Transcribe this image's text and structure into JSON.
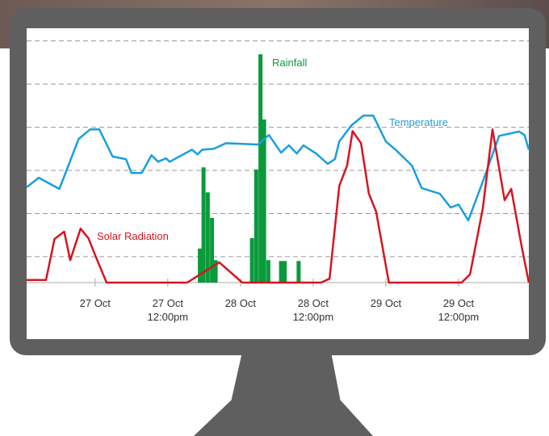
{
  "chart_data": {
    "type": "line",
    "xlim": [
      -11.3,
      71.6
    ],
    "xticks": [
      {
        "value": 0,
        "label": [
          "27 Oct"
        ]
      },
      {
        "value": 12,
        "label": [
          "27 Oct",
          "12:00pm"
        ]
      },
      {
        "value": 24,
        "label": [
          "28 Oct"
        ]
      },
      {
        "value": 36,
        "label": [
          "28 Oct",
          "12:00pm"
        ]
      },
      {
        "value": 48,
        "label": [
          "29 Oct"
        ]
      },
      {
        "value": 60,
        "label": [
          "29 Oct",
          "12:00pm"
        ]
      }
    ],
    "ylim": [
      0,
      5.65
    ],
    "yticks": [
      0.6,
      1.6,
      2.6,
      3.6,
      4.6,
      5.6
    ],
    "grid": true,
    "series": [
      {
        "name": "Rainfall",
        "type": "bar",
        "color": "#0a9a3c",
        "x": [
          17.3,
          17.9,
          18.6,
          19.3,
          19.9,
          25.9,
          26.6,
          27.3,
          27.9,
          28.6,
          30.7,
          31.3,
          33.6
        ],
        "values": [
          0.79,
          2.67,
          2.09,
          1.5,
          0.52,
          1.03,
          2.62,
          5.29,
          3.78,
          0.52,
          0.5,
          0.5,
          0.5
        ]
      },
      {
        "name": "Temperature",
        "type": "line",
        "color": "#1a9ee0",
        "x": [
          -11.3,
          -9.3,
          -5.9,
          -2.7,
          -0.8,
          0.7,
          2.9,
          5.1,
          6.0,
          7.7,
          9.3,
          10.4,
          11.7,
          12.3,
          16.0,
          16.9,
          17.7,
          19.6,
          21.6,
          26.9,
          28.7,
          30.7,
          32.0,
          33.3,
          34.4,
          36.5,
          38.4,
          39.6,
          40.3,
          42.3,
          44.3,
          45.9,
          48.0,
          49.6,
          52.3,
          53.9,
          56.9,
          58.7,
          60.0,
          61.6,
          64.0,
          66.7,
          70.0,
          70.9,
          71.6
        ],
        "values": [
          2.21,
          2.43,
          2.17,
          3.33,
          3.55,
          3.55,
          2.92,
          2.86,
          2.54,
          2.54,
          2.95,
          2.8,
          2.88,
          2.8,
          3.08,
          2.97,
          3.08,
          3.1,
          3.23,
          3.2,
          3.42,
          3.01,
          3.18,
          2.99,
          3.18,
          2.99,
          2.75,
          2.86,
          3.27,
          3.64,
          3.87,
          3.87,
          3.27,
          3.08,
          2.71,
          2.19,
          2.06,
          1.74,
          1.81,
          1.44,
          2.34,
          3.4,
          3.5,
          3.42,
          3.08
        ]
      },
      {
        "name": "Solar Radiation",
        "type": "line",
        "color": "#d7141e",
        "x": [
          -11.3,
          -8.1,
          -6.7,
          -5.1,
          -4.1,
          -2.4,
          -1.1,
          0,
          1.9,
          15.2,
          20.5,
          24.3,
          37.3,
          38.7,
          40.3,
          41.6,
          42.5,
          43.9,
          45.2,
          46.4,
          48.5,
          60.5,
          61.9,
          64.0,
          65.6,
          67.6,
          68.7,
          70.3,
          71.6
        ],
        "values": [
          0.06,
          0.06,
          1.01,
          1.18,
          0.52,
          1.25,
          1.03,
          0.64,
          0,
          0,
          0.47,
          0,
          0,
          0.09,
          2.24,
          2.71,
          3.51,
          3.23,
          2.06,
          1.64,
          0,
          0,
          0.19,
          1.72,
          3.55,
          1.91,
          2.17,
          0.93,
          0
        ]
      }
    ]
  }
}
